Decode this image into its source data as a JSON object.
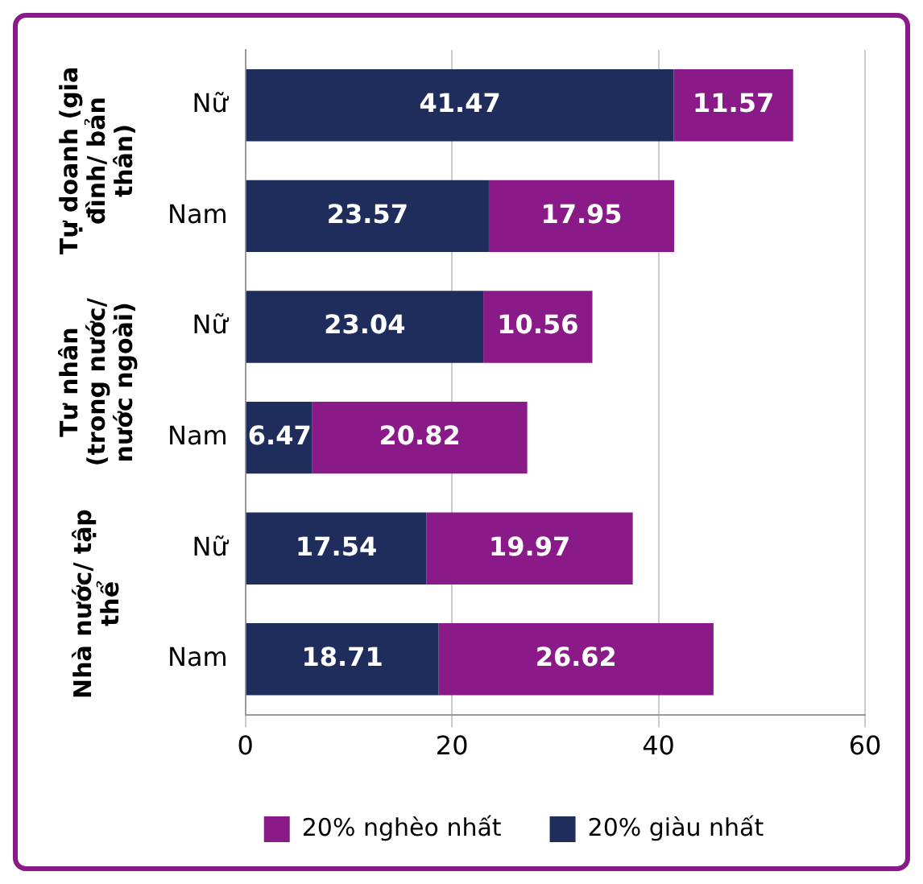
{
  "chart_data": {
    "type": "bar",
    "orientation": "horizontal",
    "stacked": true,
    "categories": [
      "Nữ",
      "Nam",
      "Nữ",
      "Nam",
      "Nữ",
      "Nam"
    ],
    "series": [
      {
        "name": "20% giàu nhất",
        "color": "#1f2d5c",
        "values": [
          41.47,
          23.57,
          23.04,
          6.47,
          17.54,
          18.71
        ]
      },
      {
        "name": "20% nghèo nhất",
        "color": "#8a1a87",
        "values": [
          11.57,
          17.95,
          10.56,
          20.82,
          19.97,
          26.62
        ]
      }
    ],
    "xlim": [
      0,
      60
    ],
    "xticks": [
      0,
      20,
      40,
      60
    ],
    "grid": "x",
    "legend": "bottom",
    "data_labels": true,
    "annotations": [
      "Tự doanh (gia đình/ bản thân)",
      "Tư nhân (trong nước/ nước ngoài)",
      "Nhà nước/ tập thể"
    ]
  }
}
